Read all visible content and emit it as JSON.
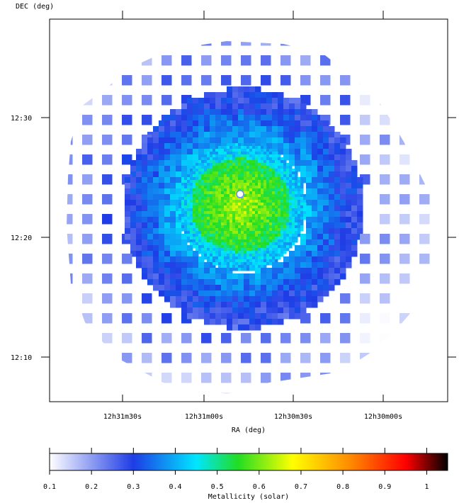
{
  "chart_data": {
    "type": "heatmap",
    "title": "",
    "xlabel": "RA (deg)",
    "ylabel": "DEC (deg)",
    "x_ticks": [
      "12h31m30s",
      "12h31m00s",
      "12h30m30s",
      "12h30m00s"
    ],
    "y_ticks": [
      "12:30",
      "12:20",
      "12:10"
    ],
    "colorbar": {
      "label": "Metallicity (solar)",
      "range": [
        0.1,
        1.05
      ],
      "ticks": [
        "0.1",
        "0.2",
        "0.3",
        "0.4",
        "0.5",
        "0.6",
        "0.7",
        "0.8",
        "0.9",
        "1"
      ],
      "tick_values": [
        0.1,
        0.2,
        0.3,
        0.4,
        0.5,
        0.6,
        0.7,
        0.8,
        0.9,
        1.0
      ],
      "colors": [
        "#ffffff",
        "#1e3ce6",
        "#00e6ff",
        "#22dd22",
        "#ffff00",
        "#ff8800",
        "#ff0000",
        "#000000"
      ],
      "color_stops": [
        0.1,
        0.3,
        0.45,
        0.55,
        0.68,
        0.82,
        0.95,
        1.05
      ]
    },
    "map_summary": {
      "center_metallicity": 0.64,
      "inner_ring_metallicity": 0.45,
      "outer_metallicity": 0.3,
      "edge_metallicity": 0.18
    },
    "grid": false
  }
}
